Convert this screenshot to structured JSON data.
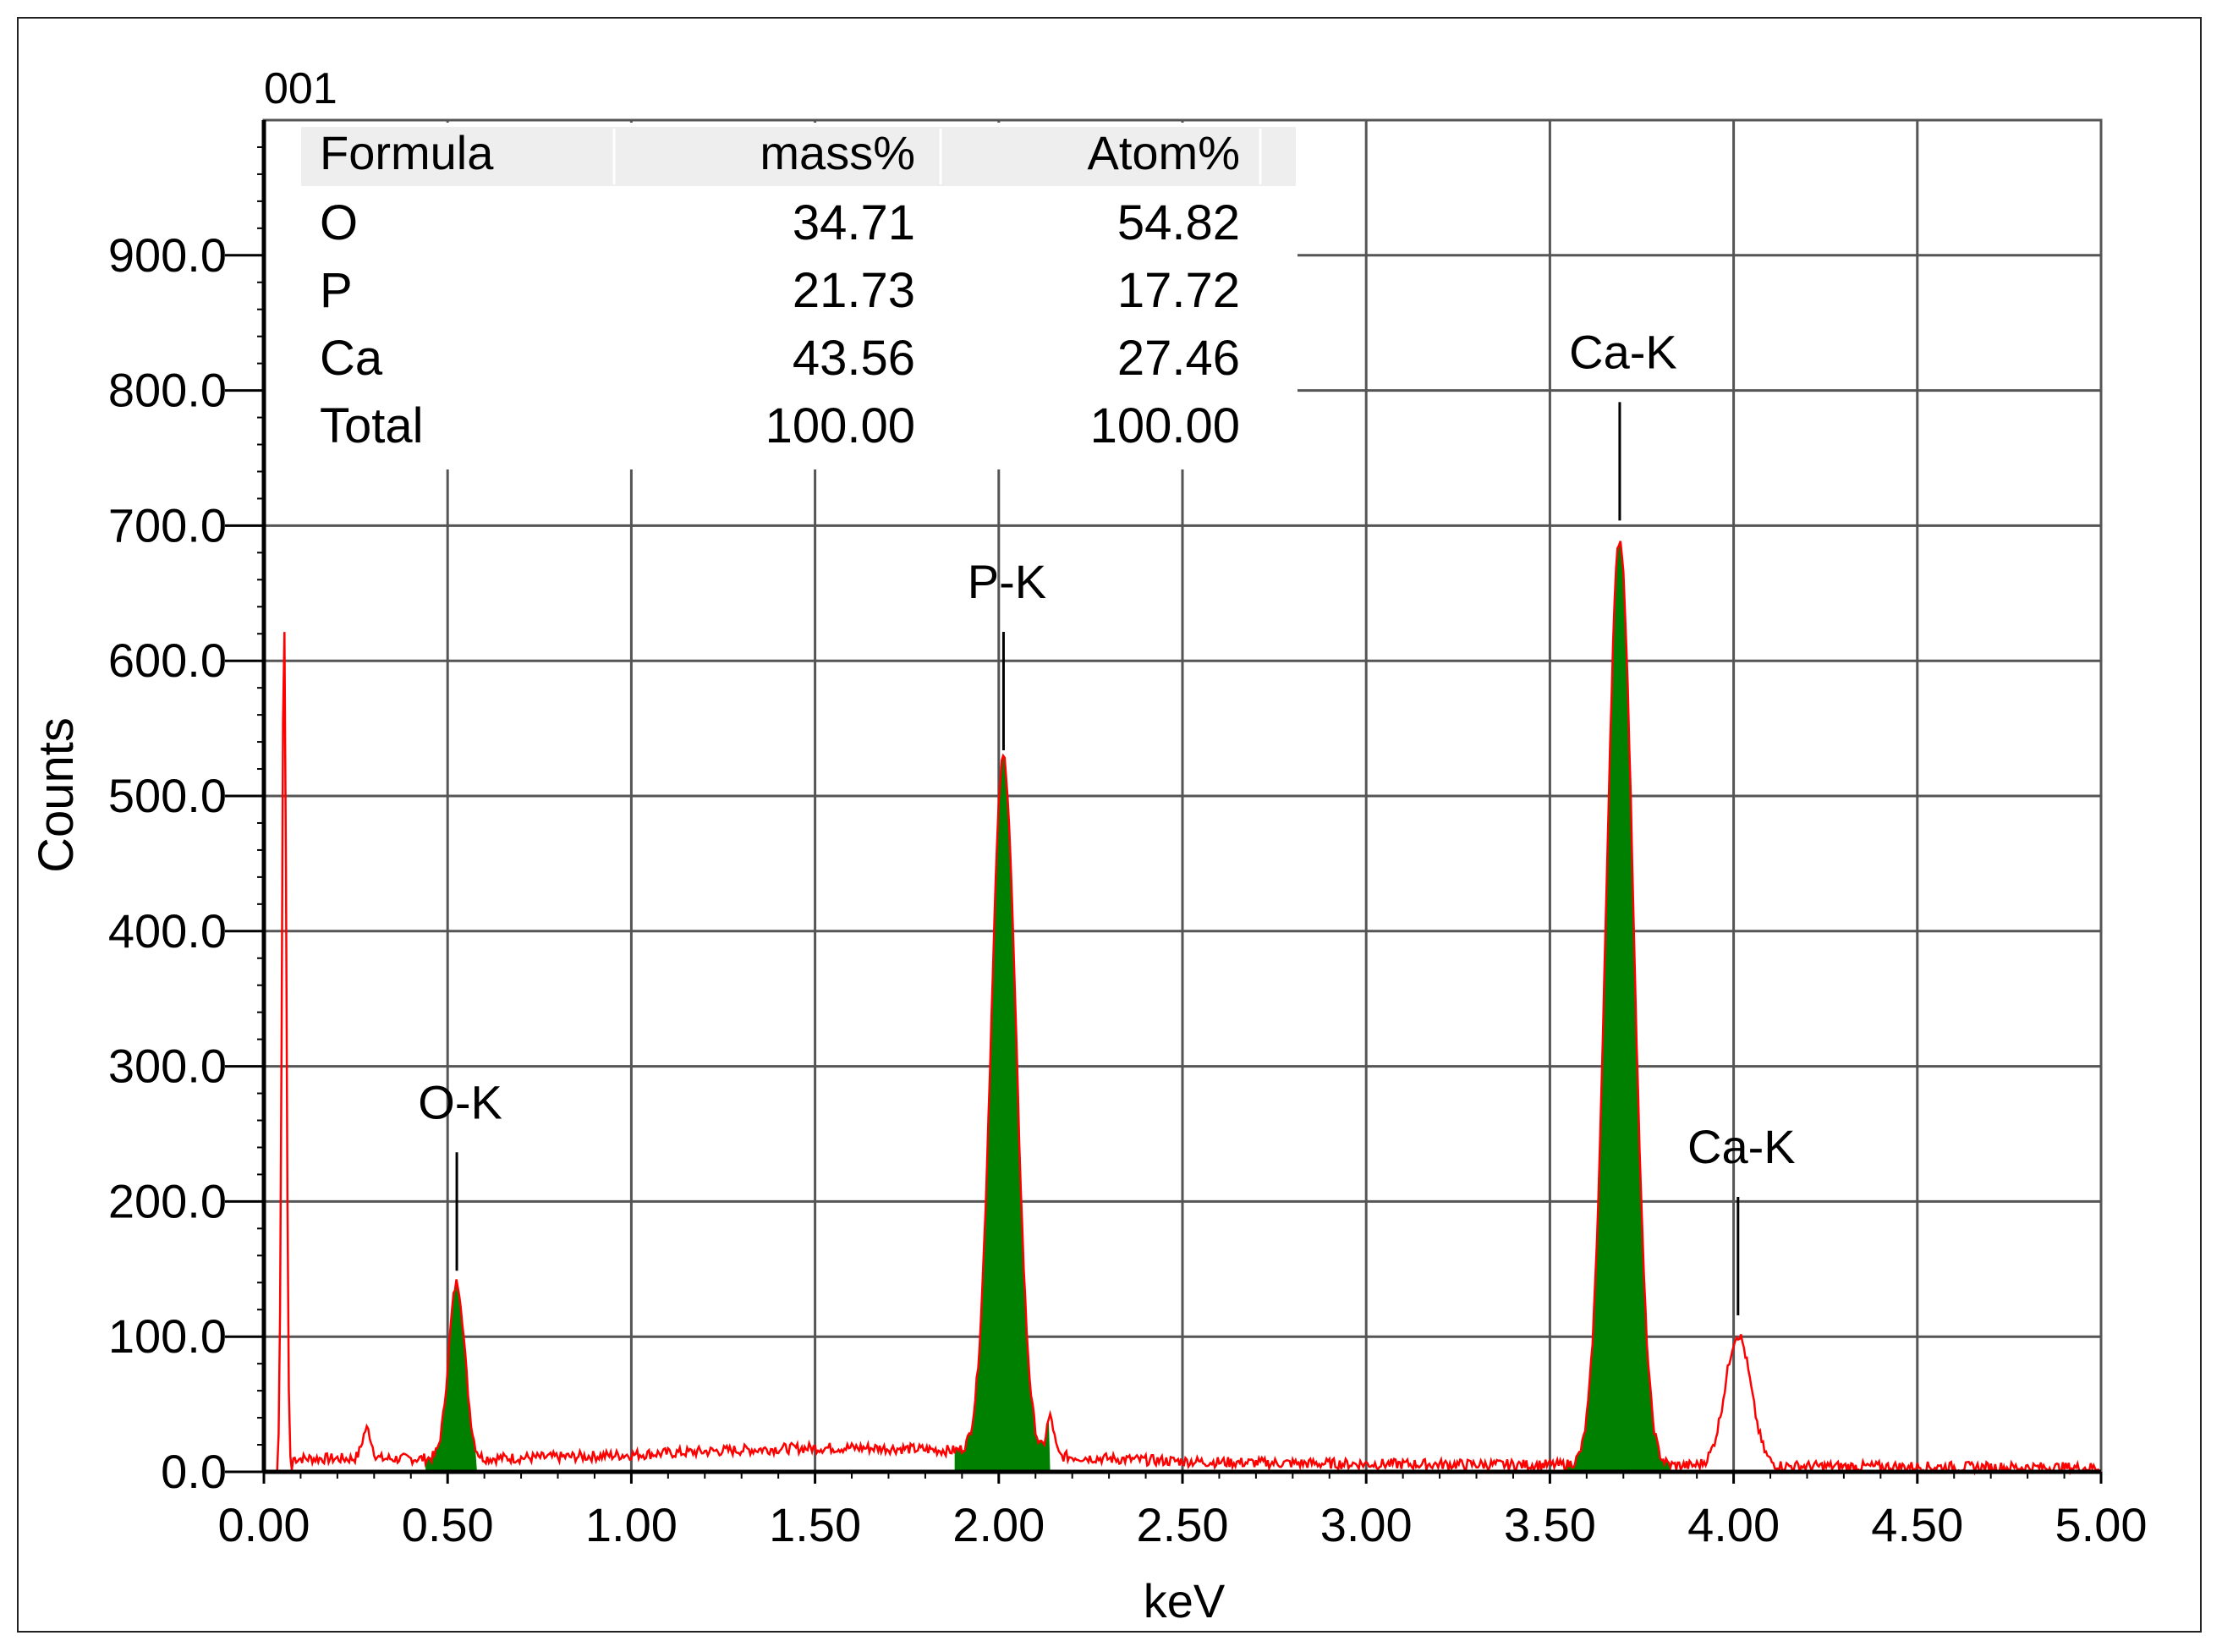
{
  "chart_data": {
    "type": "line",
    "title": "001",
    "xlabel": "keV",
    "ylabel": "Counts",
    "xlim": [
      0.0,
      5.0
    ],
    "ylim": [
      0.0,
      1000.0
    ],
    "x_ticks": [
      "0.00",
      "0.50",
      "1.00",
      "1.50",
      "2.00",
      "2.50",
      "3.00",
      "3.50",
      "4.00",
      "4.50",
      "5.00"
    ],
    "y_ticks": [
      "0.0",
      "100.0",
      "200.0",
      "300.0",
      "400.0",
      "500.0",
      "600.0",
      "700.0",
      "800.0",
      "900.0"
    ],
    "grid": true,
    "colors": {
      "spectrum": "#ff0000",
      "peak_fill": "#008000",
      "grid": "#555555"
    },
    "peaks": [
      {
        "label": "O-K",
        "energy": 0.525,
        "counts": 130,
        "sigma": 0.022,
        "filled": true,
        "fill_range": [
          0.44,
          0.58
        ]
      },
      {
        "label": "P-K",
        "energy": 2.013,
        "counts": 515,
        "sigma": 0.034,
        "filled": true,
        "fill_range": [
          1.88,
          2.14
        ]
      },
      {
        "label": "Ca-K",
        "energy": 3.69,
        "counts": 685,
        "sigma": 0.037,
        "filled": true,
        "fill_range": [
          3.54,
          3.83
        ]
      },
      {
        "label": "Ca-K",
        "energy": 4.012,
        "counts": 97,
        "sigma": 0.035,
        "filled": false,
        "fill_range": null
      }
    ],
    "noise_peak": {
      "energy": 0.055,
      "counts": 630
    },
    "background": {
      "start": 10,
      "end": 3
    },
    "table": {
      "headers": [
        "Formula",
        "mass%",
        "Atom%"
      ],
      "rows": [
        [
          "O",
          "34.71",
          "54.82"
        ],
        [
          "P",
          "21.73",
          "17.72"
        ],
        [
          "Ca",
          "43.56",
          "27.46"
        ],
        [
          "Total",
          "100.00",
          "100.00"
        ]
      ]
    }
  }
}
